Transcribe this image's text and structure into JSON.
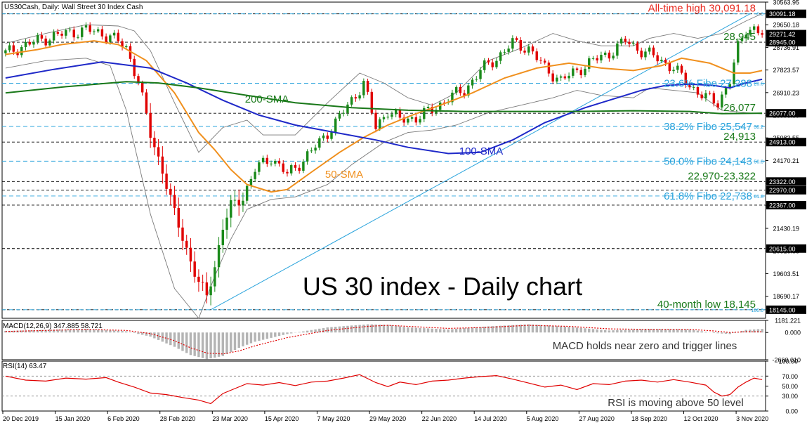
{
  "chart_data": [
    {
      "type": "candlestick",
      "header": "US30Cash, Daily:  Wall Street 30 Index Cash",
      "title": "US 30 index - Daily chart",
      "ylim": [
        17800,
        30563.9
      ],
      "y_tick_labels": [
        "30563.95",
        "29650.18",
        "28736.91",
        "27823.57",
        "26910.23",
        "25996.89",
        "25083.55",
        "24170.21",
        "23256.87",
        "22343.53",
        "21430.19",
        "20516.85",
        "19603.51",
        "18690.17"
      ],
      "y_ticks": [
        30563.95,
        29650.18,
        28736.91,
        27823.57,
        26910.23,
        25996.89,
        25083.55,
        24170.21,
        23256.87,
        22343.53,
        21430.19,
        20516.85,
        19603.51,
        18690.17
      ],
      "x_tick_labels": [
        "20 Dec 2019",
        "15 Jan 2020",
        "6 Feb 2020",
        "28 Feb 2020",
        "23 Mar 2020",
        "15 Apr 2020",
        "7 May 2020",
        "29 May 2020",
        "22 Jun 2020",
        "14 Jul 2020",
        "5 Aug 2020",
        "27 Aug 2020",
        "18 Sep 2020",
        "12 Oct 2020",
        "3 Nov 2020"
      ],
      "price_boxes": [
        {
          "value": 30091.18,
          "label": "30091.18"
        },
        {
          "value": 29271.42,
          "label": "29271.42"
        },
        {
          "value": 28945.0,
          "label": "28945.00"
        },
        {
          "value": 26077.0,
          "label": "26077.00"
        },
        {
          "value": 24913.0,
          "label": "24913.00"
        },
        {
          "value": 23322.0,
          "label": "23322.00"
        },
        {
          "value": 22970.0,
          "label": "22970.00"
        },
        {
          "value": 22367.0,
          "label": "22367.00"
        },
        {
          "value": 20615.0,
          "label": "20615.00"
        },
        {
          "value": 18145.0,
          "label": "18145.00"
        }
      ],
      "support_resistance": [
        {
          "value": 30091.18,
          "label": "All-time high 30,091.18",
          "color": "#e8281e"
        },
        {
          "value": 28945,
          "label": "28,945",
          "color": "#1a7a1a"
        },
        {
          "value": 26077,
          "label": "26,077",
          "color": "#1a7a1a"
        },
        {
          "value": 24913,
          "label": "24,913",
          "color": "#1a7a1a"
        },
        {
          "value": 23322,
          "label": "22,970-23,322",
          "color": "#1a7a1a"
        },
        {
          "value": 22970,
          "label": "",
          "color": "#1a7a1a"
        },
        {
          "value": 22367,
          "label": "",
          "color": "#1a7a1a"
        },
        {
          "value": 20615,
          "label": "",
          "color": "#1a7a1a"
        },
        {
          "value": 18145,
          "label": "40-month low 18,145",
          "color": "#1a7a1a"
        }
      ],
      "fibonacci": [
        {
          "value": 30091.18,
          "label": "",
          "tag": "0.0"
        },
        {
          "value": 27288,
          "label": "23.6% Fibo 27,288",
          "tag": "23.6"
        },
        {
          "value": 25547,
          "label": "38.2% Fibo 25,547",
          "tag": "38.2"
        },
        {
          "value": 24143,
          "label": "50.0% Fibo 24,143",
          "tag": "50.0"
        },
        {
          "value": 22738,
          "label": "61.8% Fibo 22,738",
          "tag": "61.8"
        },
        {
          "value": 18145,
          "label": "",
          "tag": "100.0"
        }
      ],
      "series": [
        {
          "name": "50-SMA",
          "color": "#f0901e",
          "x": [
            0,
            8,
            14,
            22,
            28,
            35,
            42,
            48,
            52,
            56,
            60,
            66,
            70,
            76,
            83,
            89,
            95,
            101,
            108,
            116,
            124,
            132,
            140,
            148,
            156,
            163,
            168,
            175,
            181,
            185,
            188
          ],
          "y": [
            28450,
            28650,
            28850,
            29000,
            28850,
            28200,
            26900,
            25300,
            24600,
            23800,
            23200,
            22900,
            23000,
            23700,
            24500,
            25100,
            25600,
            26000,
            26400,
            26900,
            27500,
            27900,
            28100,
            27900,
            27800,
            28000,
            28300,
            28100,
            27700,
            27700,
            27800
          ]
        },
        {
          "name": "100-SMA",
          "color": "#1e28c8",
          "x": [
            0,
            12,
            24,
            36,
            45,
            54,
            63,
            72,
            82,
            92,
            100,
            110,
            118,
            126,
            134,
            144,
            152,
            158,
            164,
            170,
            176,
            180,
            184,
            188
          ],
          "y": [
            27500,
            27850,
            28150,
            27900,
            27300,
            26600,
            26000,
            25600,
            25300,
            25000,
            24700,
            24450,
            24500,
            25000,
            25700,
            26300,
            26700,
            27000,
            27200,
            27250,
            27200,
            27100,
            27300,
            27450
          ]
        },
        {
          "name": "200-SMA",
          "color": "#197819",
          "x": [
            0,
            15,
            30,
            38,
            48,
            60,
            72,
            86,
            100,
            114,
            128,
            142,
            156,
            170,
            178,
            188
          ],
          "y": [
            26900,
            27150,
            27350,
            27300,
            27100,
            26800,
            26500,
            26300,
            26200,
            26150,
            26150,
            26150,
            26180,
            26150,
            26060,
            26080
          ]
        }
      ],
      "bollinger_bands": {
        "color": "#7a7a7a",
        "upper": {
          "x": [
            0,
            10,
            20,
            28,
            32,
            36,
            42,
            48,
            54,
            60,
            64,
            72,
            80,
            88,
            94,
            100,
            106,
            112,
            120,
            128,
            136,
            142,
            148,
            156,
            160,
            166,
            172,
            178,
            184,
            188
          ],
          "y": [
            28900,
            29300,
            29650,
            29600,
            29400,
            28600,
            26500,
            24500,
            25500,
            25800,
            25200,
            25200,
            26500,
            27700,
            27300,
            26700,
            26400,
            26900,
            28200,
            28700,
            29300,
            29000,
            28800,
            28800,
            29100,
            29300,
            29100,
            29300,
            29800,
            30100
          ]
        },
        "lower": {
          "x": [
            0,
            10,
            20,
            26,
            30,
            36,
            42,
            48,
            52,
            56,
            60,
            66,
            72,
            80,
            86,
            94,
            100,
            106,
            112,
            120,
            128,
            136,
            142,
            148,
            156,
            160,
            166,
            172,
            178,
            184,
            188
          ],
          "y": [
            27900,
            28200,
            28300,
            28000,
            26200,
            22000,
            19000,
            17800,
            19500,
            21000,
            22200,
            22600,
            22700,
            23200,
            24000,
            24900,
            25300,
            25400,
            25600,
            26100,
            26400,
            26700,
            27000,
            26800,
            26700,
            27100,
            27000,
            26900,
            26200,
            26100,
            26050
          ]
        }
      },
      "trendline": {
        "color": "#29a3dc",
        "x": [
          51,
          185
        ],
        "y": [
          18145,
          30091.18
        ]
      },
      "annotations": [
        {
          "text": "200-SMA",
          "color": "#1a7a1a"
        },
        {
          "text": "100-SMA",
          "color": "#1e28c8"
        },
        {
          "text": "50-SMA",
          "color": "#f0901e"
        }
      ],
      "bull_color": "#1a8a1a",
      "bear_color": "#e00000"
    },
    {
      "type": "line",
      "header": "MACD(12,26,9) 347.885 58.721",
      "ylim": [
        -2660.01,
        1181.221
      ],
      "y_tick_labels": [
        "1181.221",
        "0.000",
        "-2660.010"
      ],
      "y_ticks": [
        1181.221,
        0,
        -2660.01
      ],
      "note": "MACD holds near zero and trigger lines",
      "series": [
        {
          "name": "",
          "type": "histogram",
          "color": "#b4b4b4",
          "x": [
            0,
            10,
            20,
            30,
            36,
            42,
            46,
            50,
            54,
            58,
            62,
            70,
            80,
            90,
            95,
            100,
            110,
            120,
            130,
            140,
            150,
            160,
            170,
            176,
            180,
            184,
            188
          ],
          "y": [
            150,
            250,
            350,
            120,
            -400,
            -1400,
            -2200,
            -2600,
            -2300,
            -1500,
            -900,
            -150,
            500,
            800,
            750,
            500,
            300,
            600,
            800,
            550,
            200,
            350,
            300,
            -50,
            -150,
            250,
            350
          ]
        },
        {
          "name": "",
          "type": "signal",
          "color": "#e00000",
          "x": [
            0,
            10,
            20,
            30,
            36,
            42,
            46,
            50,
            54,
            58,
            62,
            70,
            80,
            90,
            95,
            100,
            110,
            120,
            130,
            140,
            150,
            160,
            170,
            176,
            180,
            184,
            188
          ],
          "y": [
            100,
            200,
            300,
            200,
            -100,
            -800,
            -1500,
            -2000,
            -2100,
            -1800,
            -1300,
            -500,
            200,
            600,
            700,
            600,
            400,
            500,
            700,
            600,
            350,
            300,
            300,
            150,
            0,
            80,
            60
          ]
        }
      ]
    },
    {
      "type": "line",
      "header": "RSI(14) 63.47",
      "ylim": [
        0,
        100
      ],
      "y_tick_labels": [
        "100.00",
        "70.00",
        "50.00",
        "30.00",
        "0.00"
      ],
      "y_ticks": [
        100,
        70,
        50,
        30,
        0
      ],
      "note": "RSI is moving above 50 level",
      "series": [
        {
          "name": "",
          "color": "#e00000",
          "x": [
            0,
            5,
            10,
            15,
            20,
            25,
            28,
            32,
            36,
            40,
            44,
            48,
            51,
            54,
            57,
            60,
            64,
            68,
            72,
            76,
            80,
            84,
            88,
            92,
            95,
            98,
            102,
            106,
            110,
            114,
            118,
            122,
            126,
            130,
            134,
            138,
            142,
            146,
            150,
            154,
            158,
            162,
            166,
            170,
            174,
            176,
            178,
            180,
            182,
            184,
            186,
            188
          ],
          "y": [
            70,
            62,
            60,
            66,
            64,
            67,
            58,
            48,
            36,
            33,
            27,
            22,
            15,
            35,
            45,
            55,
            52,
            57,
            51,
            58,
            60,
            66,
            73,
            57,
            49,
            58,
            53,
            60,
            62,
            66,
            69,
            71,
            64,
            56,
            48,
            52,
            43,
            55,
            53,
            60,
            62,
            58,
            63,
            58,
            52,
            38,
            30,
            33,
            48,
            58,
            66,
            63
          ]
        }
      ]
    }
  ]
}
